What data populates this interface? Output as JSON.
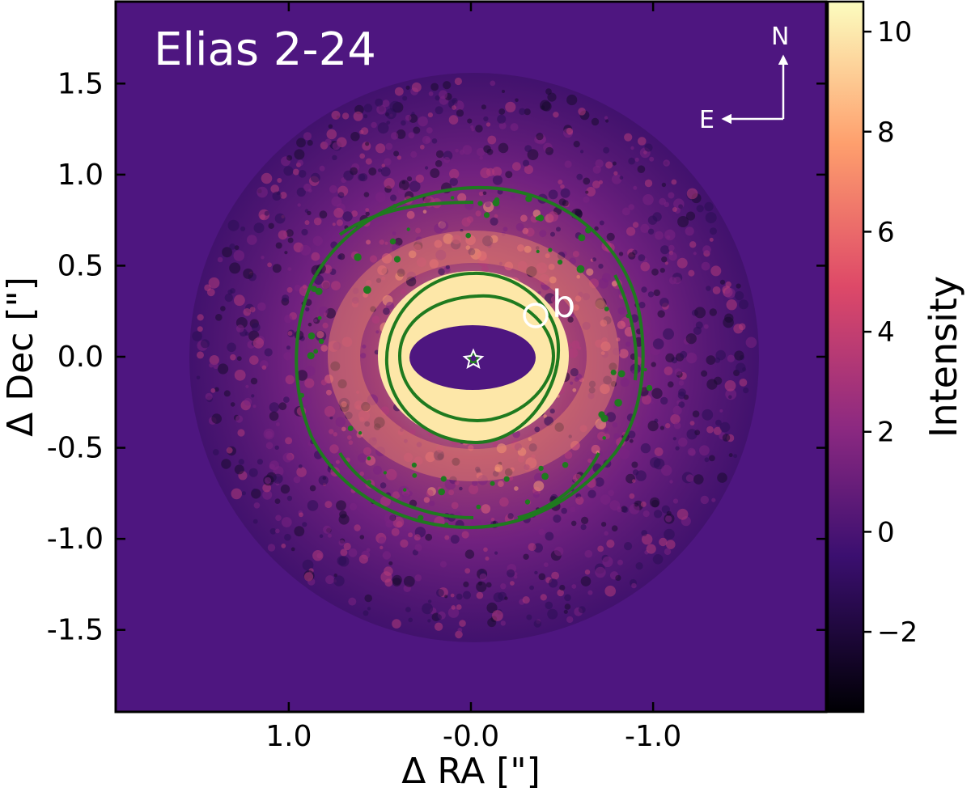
{
  "panel": {
    "title": "Elias 2-24",
    "planet_label": "b",
    "compass": {
      "north": "N",
      "east": "E"
    }
  },
  "axes": {
    "xlabel": "Δ RA [\"]",
    "ylabel": "Δ Dec [\"]",
    "xlim": [
      1.95,
      -1.95
    ],
    "ylim": [
      -1.95,
      1.95
    ],
    "xticks": [
      {
        "value": 1.0,
        "label": "1.0"
      },
      {
        "value": 0.0,
        "label": "-0.0"
      },
      {
        "value": -1.0,
        "label": "-1.0"
      }
    ],
    "yticks": [
      {
        "value": 1.5,
        "label": "1.5"
      },
      {
        "value": 1.0,
        "label": "1.0"
      },
      {
        "value": 0.5,
        "label": "0.5"
      },
      {
        "value": 0.0,
        "label": "0.0"
      },
      {
        "value": -0.5,
        "label": "-0.5"
      },
      {
        "value": -1.0,
        "label": "-1.0"
      },
      {
        "value": -1.5,
        "label": "-1.5"
      }
    ]
  },
  "colorbar": {
    "label": "Intensity",
    "range": [
      -3.6,
      10.6
    ],
    "ticks": [
      {
        "value": 10,
        "label": "10"
      },
      {
        "value": 8,
        "label": "8"
      },
      {
        "value": 6,
        "label": "6"
      },
      {
        "value": 4,
        "label": "4"
      },
      {
        "value": 2,
        "label": "2"
      },
      {
        "value": 0,
        "label": "0"
      },
      {
        "value": -2,
        "label": "−2"
      }
    ],
    "colormap": [
      "#000004",
      "#3b0f70",
      "#8c2981",
      "#de4968",
      "#fe9f6d",
      "#fcfdbf"
    ]
  },
  "colors": {
    "background": "#4e1680",
    "contour": "#1f7a1f",
    "annotation": "#ffffff"
  }
}
